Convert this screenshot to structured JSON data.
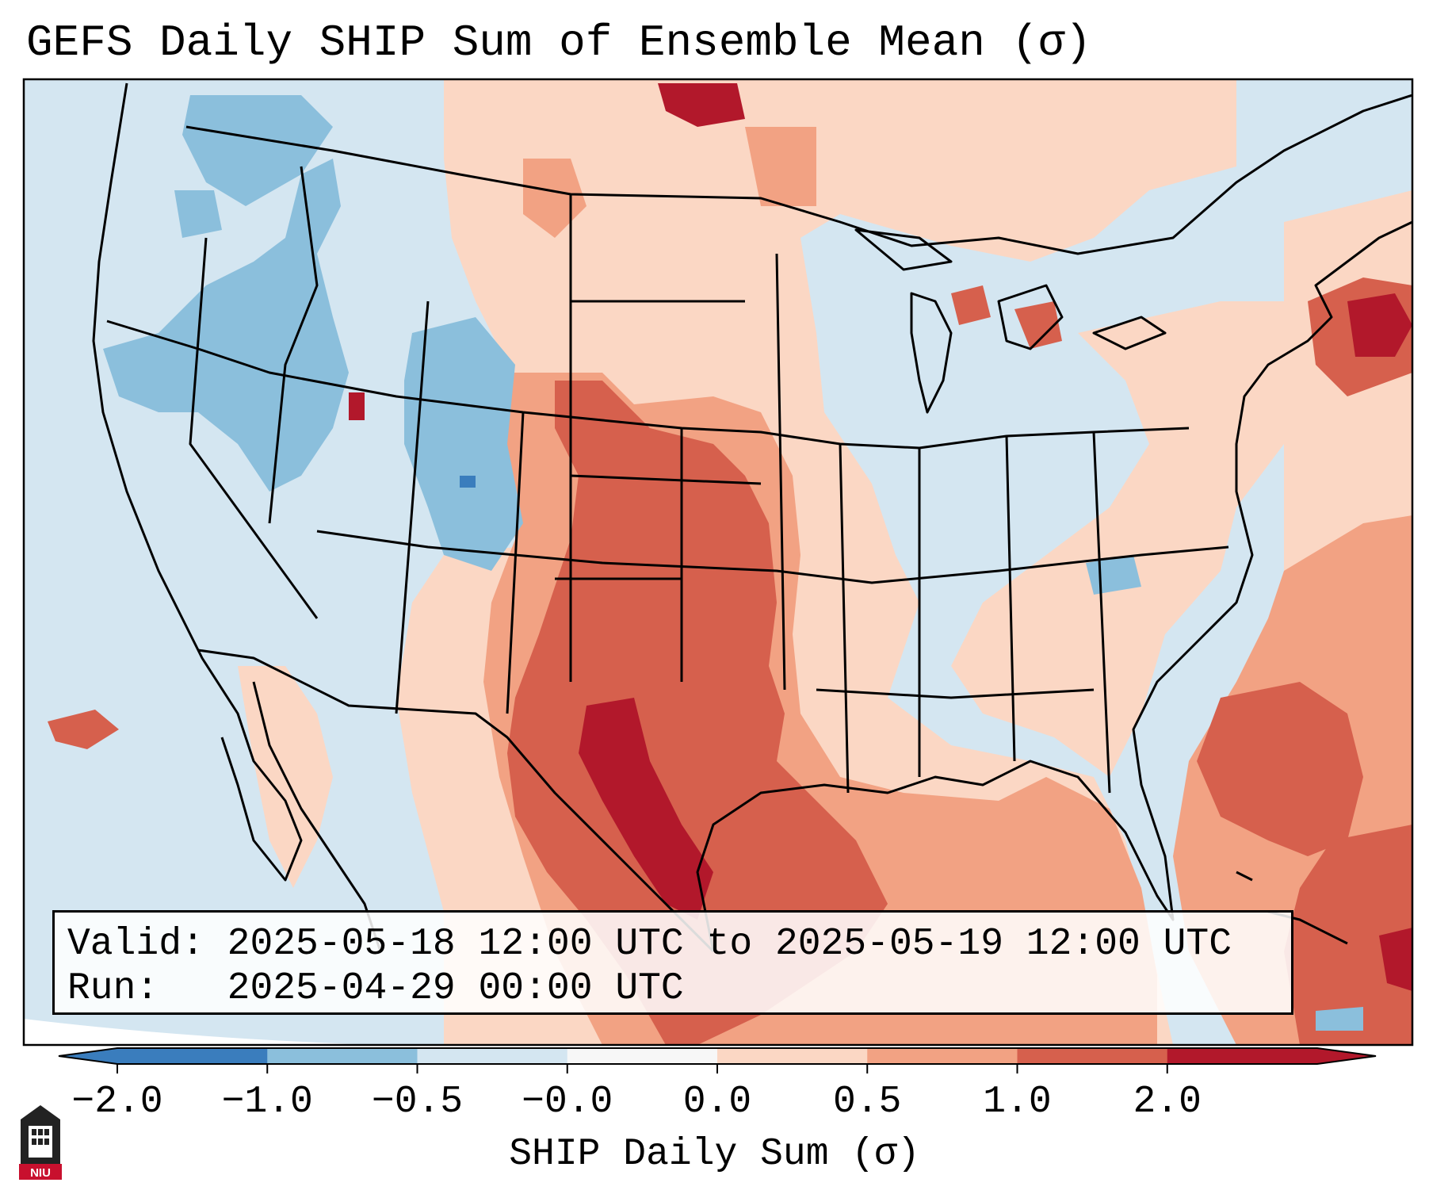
{
  "title": "GEFS Daily SHIP Sum of Ensemble Mean (σ)",
  "info": {
    "valid_line": "Valid: 2025-05-18 12:00 UTC to 2025-05-19 12:00 UTC",
    "run_line": "Run:   2025-04-29 00:00 UTC"
  },
  "colorbar": {
    "label": "SHIP Daily Sum (σ)",
    "ticks": [
      "−2.0",
      "−1.0",
      "−0.5",
      "−0.0",
      "0.0",
      "0.5",
      "1.0",
      "2.0"
    ],
    "colors": [
      "#3a7dbd",
      "#8bbfdc",
      "#d4e6f1",
      "#f7f7f7",
      "#fbd7c4",
      "#f2a283",
      "#d6604d",
      "#b2182b"
    ],
    "under_color": "#3a7dbd",
    "over_color": "#b2182b"
  },
  "map": {
    "projection": "Lambert Conformal",
    "region": "Continental United States",
    "ocean_color": "#d4e6f1",
    "border_color": "#000000",
    "field_levels": {
      "strong_negative": "#3a7dbd",
      "moderate_negative": "#8bbfdc",
      "weak_negative": "#d4e6f1",
      "weak_positive": "#fbd7c4",
      "moderate_positive": "#f2a283",
      "strong_positive": "#d6604d",
      "very_strong_positive": "#b2182b"
    }
  },
  "logo": {
    "text": "NIU",
    "icon": "niu-seal-icon"
  }
}
